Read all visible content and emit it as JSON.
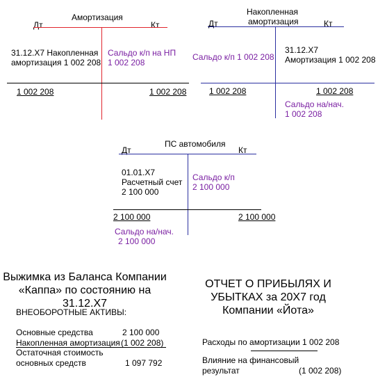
{
  "colors": {
    "red": "#e0242c",
    "blue": "#2a2fa0",
    "purple": "#7a1fa2",
    "black": "#000000"
  },
  "amort": {
    "title": "Амортизация",
    "dt": "Дт",
    "kt": "Кт",
    "left_entry_l1": "31.12.X7 Накопленная",
    "left_entry_l2": "амортизация 1 002 208",
    "right_entry_l1": "Сальдо к/п на НП",
    "right_entry_l2": "1 002 208",
    "left_total": "1 002 208",
    "right_total": "1 002 208"
  },
  "accum": {
    "title_l1": "Накопленная",
    "title_l2": "амортизация",
    "dt": "Дт",
    "kt": "Кт",
    "left_entry": "Сальдо к/п  1 002 208",
    "right_entry_l1": "31.12.X7",
    "right_entry_l2": "Амортизация 1 002 208",
    "left_total": "1 002 208",
    "right_total": "1 002 208",
    "open_l1": "Сальдо на/нач.",
    "open_l2": "1 002 208"
  },
  "ps": {
    "title": "ПС автомобиля",
    "dt": "Дт",
    "kt": "Кт",
    "left_entry_l1": "01.01.X7",
    "left_entry_l2": "Расчетный счет",
    "left_entry_l3": "2 100 000",
    "right_entry_l1": "Сальдо к/п",
    "right_entry_l2": "2 100 000",
    "left_total": "2 100 000",
    "right_total": "2 100 000",
    "open_l1": "Сальдо на/нач.",
    "open_l2": "2 100 000"
  },
  "balance": {
    "title_l1": "Выжимка из Баланса Компании",
    "title_l2": "«Каппа» по состоянию на",
    "title_l3": "31.12.X7",
    "section": "ВНЕОБОРОТНЫЕ АКТИВЫ:",
    "row1_label": "Основные средства",
    "row1_value": "2 100 000",
    "row2_label": "Накопленная амортизация",
    "row2_value": "(1 002 208)",
    "row3_label_l1": "Остаточная стоимость",
    "row3_label_l2": "основных средств",
    "row3_value": "1 097 792"
  },
  "pnl": {
    "title_l1": "ОТЧЕТ О ПРИБЫЛЯХ И",
    "title_l2": "УБЫТКАХ за 20X7 год",
    "title_l3": "Компании «Йота»",
    "row1": "Расходы по амортизации  1 002 208",
    "row2_l1": "Влияние на финансовый",
    "row2_l2": "результат",
    "row2_value": "(1 002 208)"
  }
}
